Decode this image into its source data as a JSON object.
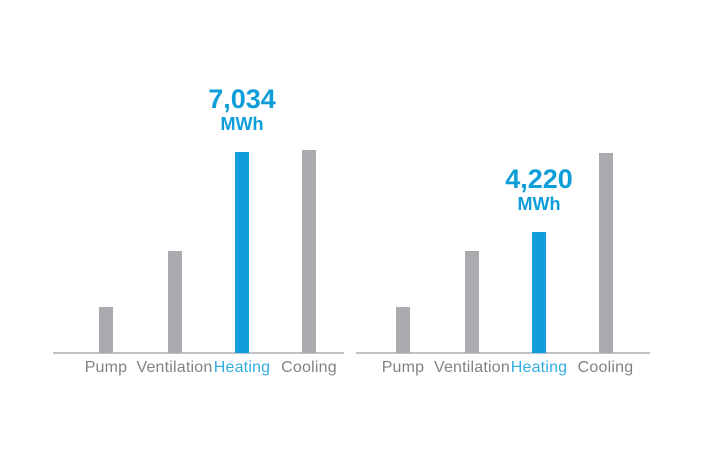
{
  "colors": {
    "background": "#ffffff",
    "bar_gray": "#a9abae",
    "bar_blue": "#129cdb",
    "axis_line": "#bfc1c4",
    "category_label_gray": "#808285",
    "category_label_blue": "#33ace3",
    "value_label_blue": "#0d9dd9"
  },
  "chart_data": [
    {
      "type": "bar",
      "title": "",
      "categories": [
        "Pump",
        "Ventilation",
        "Heating",
        "Cooling"
      ],
      "values": [
        1610,
        3570,
        7034,
        7100
      ],
      "highlight_index": 2,
      "highlight_value_label": "7,034",
      "unit_label": "MWh",
      "xlabel": "",
      "ylabel": "",
      "ylim": [
        0,
        7105
      ],
      "grid": false,
      "legend": false
    },
    {
      "type": "bar",
      "title": "",
      "categories": [
        "Pump",
        "Ventilation",
        "Heating",
        "Cooling"
      ],
      "values": [
        1610,
        3570,
        4220,
        7000
      ],
      "highlight_index": 2,
      "highlight_value_label": "4,220",
      "unit_label": "MWh",
      "xlabel": "",
      "ylabel": "",
      "ylim": [
        0,
        7105
      ],
      "grid": false,
      "legend": false
    }
  ]
}
